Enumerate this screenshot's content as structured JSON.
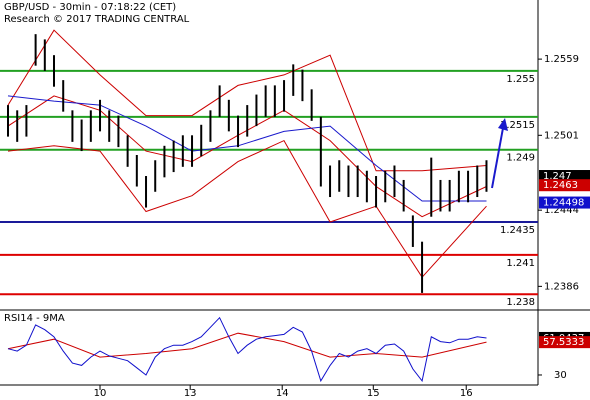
{
  "chart_data": [
    {
      "type": "ohlc",
      "title": "GBP/USD - 30min - 07:18:22 (CET)",
      "subtitle": "Research © 2017 TRADING CENTRAL",
      "x": [
        0,
        0.1,
        0.2,
        0.3,
        0.4,
        0.5,
        0.6,
        0.7,
        0.8,
        0.9,
        1,
        1.1,
        1.2,
        1.3,
        1.4,
        1.5,
        1.6,
        1.7,
        1.8,
        1.9,
        2,
        2.1,
        2.2,
        2.3,
        2.4,
        2.5,
        2.6,
        2.7,
        2.8,
        2.9,
        3,
        3.1,
        3.2,
        3.3,
        3.4,
        3.5,
        3.6,
        3.7,
        3.8,
        3.9,
        4,
        4.1,
        4.2,
        4.3,
        4.4,
        4.5,
        4.6,
        4.7,
        4.8,
        4.9,
        5,
        5.1,
        5.2
      ],
      "high": [
        1.2524,
        1.252,
        1.2524,
        1.2578,
        1.2574,
        1.2562,
        1.2543,
        1.252,
        1.2513,
        1.252,
        1.2528,
        1.252,
        1.2516,
        1.2501,
        1.2486,
        1.247,
        1.2482,
        1.2493,
        1.2497,
        1.2501,
        1.2501,
        1.2509,
        1.252,
        1.2539,
        1.2528,
        1.2516,
        1.2524,
        1.2532,
        1.2539,
        1.2539,
        1.2543,
        1.2555,
        1.2551,
        1.2536,
        1.2515,
        1.2478,
        1.2482,
        1.2478,
        1.2478,
        1.2474,
        1.247,
        1.2474,
        1.2478,
        1.2467,
        1.244,
        1.242,
        1.2484,
        1.2467,
        1.2467,
        1.2474,
        1.2474,
        1.2478,
        1.2482
      ],
      "low": [
        1.25,
        1.2496,
        1.25,
        1.2554,
        1.255,
        1.2538,
        1.2519,
        1.2496,
        1.2489,
        1.2496,
        1.2504,
        1.2496,
        1.2492,
        1.2477,
        1.2462,
        1.2446,
        1.2458,
        1.2469,
        1.2473,
        1.2477,
        1.2477,
        1.2485,
        1.2496,
        1.2515,
        1.2504,
        1.2492,
        1.25,
        1.2508,
        1.2515,
        1.2515,
        1.2519,
        1.2531,
        1.2527,
        1.2512,
        1.2462,
        1.2454,
        1.2458,
        1.2454,
        1.2454,
        1.245,
        1.2446,
        1.245,
        1.2454,
        1.2443,
        1.2416,
        1.2381,
        1.2439,
        1.2443,
        1.2443,
        1.245,
        1.245,
        1.2454,
        1.2458
      ],
      "bands": {
        "x": [
          0,
          0.5,
          1,
          1.5,
          2,
          2.5,
          3,
          3.5,
          4,
          4.5,
          5.2
        ],
        "series": [
          {
            "color": "#cc0000",
            "values": [
              1.2524,
              1.2581,
              1.2547,
              1.2516,
              1.2516,
              1.2539,
              1.2547,
              1.2562,
              1.2474,
              1.2474,
              1.2478
            ]
          },
          {
            "color": "#cc0000",
            "values": [
              1.2489,
              1.2493,
              1.2489,
              1.2443,
              1.2455,
              1.2481,
              1.2497,
              1.2435,
              1.2447,
              1.2393,
              1.2447
            ]
          },
          {
            "color": "#cc0000",
            "values": [
              1.2508,
              1.2531,
              1.252,
              1.2489,
              1.2481,
              1.2501,
              1.252,
              1.2497,
              1.2462,
              1.2439,
              1.2462
            ]
          },
          {
            "color": "#1a1acc",
            "values": [
              1.2531,
              1.2527,
              1.2524,
              1.2508,
              1.2489,
              1.2493,
              1.2504,
              1.2508,
              1.2478,
              1.2451,
              1.2451
            ]
          }
        ]
      },
      "levels": [
        {
          "value": 1.255,
          "color": "#22a022"
        },
        {
          "value": 1.2515,
          "color": "#22a022"
        },
        {
          "value": 1.249,
          "color": "#22a022"
        },
        {
          "value": 1.2435,
          "color": "#1a1a99"
        },
        {
          "value": 1.241,
          "color": "#dd0000"
        },
        {
          "value": 1.238,
          "color": "#dd0000"
        }
      ],
      "markers": [
        {
          "value": 1.247,
          "color": "#000000"
        },
        {
          "value": 1.2463,
          "color": "#cc0000"
        },
        {
          "value": 1.24498,
          "color": "#1010cc"
        }
      ],
      "xlim": [
        -0.087,
        5.76
      ],
      "xticks": [
        {
          "value": 1,
          "label": "10"
        },
        {
          "value": 1.98,
          "label": "13"
        },
        {
          "value": 2.98,
          "label": "14"
        },
        {
          "value": 3.97,
          "label": "15"
        },
        {
          "value": 4.98,
          "label": "16"
        }
      ],
      "ylim": [
        1.2368,
        1.2604
      ],
      "yticks": [
        1.2559,
        1.2501,
        1.2444,
        1.2386
      ],
      "color": "#000000"
    },
    {
      "type": "line",
      "title": "RSI14 - 9MA",
      "x": [
        0,
        0.1,
        0.2,
        0.3,
        0.4,
        0.5,
        0.6,
        0.7,
        0.8,
        0.9,
        1,
        1.1,
        1.2,
        1.3,
        1.4,
        1.5,
        1.6,
        1.7,
        1.8,
        1.9,
        2,
        2.1,
        2.2,
        2.3,
        2.4,
        2.5,
        2.6,
        2.7,
        2.8,
        2.9,
        3,
        3.1,
        3.2,
        3.3,
        3.4,
        3.5,
        3.6,
        3.7,
        3.8,
        3.9,
        4,
        4.1,
        4.2,
        4.3,
        4.4,
        4.5,
        4.6,
        4.7,
        4.8,
        4.9,
        5,
        5.1,
        5.2
      ],
      "series": [
        {
          "color": "#1010cc",
          "values": [
            52,
            50,
            55,
            72,
            68,
            62,
            50,
            40,
            38,
            45,
            50,
            46,
            44,
            42,
            36,
            30,
            45,
            52,
            55,
            55,
            58,
            62,
            70,
            78,
            62,
            48,
            55,
            60,
            62,
            63,
            64,
            70,
            66,
            50,
            25,
            38,
            48,
            45,
            50,
            52,
            48,
            55,
            56,
            50,
            35,
            25,
            62,
            58,
            57,
            60,
            60,
            62,
            61.0437
          ]
        }
      ],
      "ma": {
        "color": "#cc0000",
        "x": [
          0,
          0.5,
          1,
          1.5,
          2,
          2.5,
          3,
          3.5,
          4,
          4.5,
          5.2
        ],
        "values": [
          52,
          60,
          45,
          48,
          52,
          65,
          58,
          45,
          48,
          45,
          57.5333
        ]
      },
      "markers": [
        {
          "value": 61.0437,
          "color": "#000000"
        },
        {
          "value": 57.5333,
          "color": "#cc0000"
        }
      ],
      "xlim": [
        -0.087,
        5.76
      ],
      "ylim": [
        21.6,
        82.8
      ],
      "yticks": [
        30
      ]
    }
  ]
}
